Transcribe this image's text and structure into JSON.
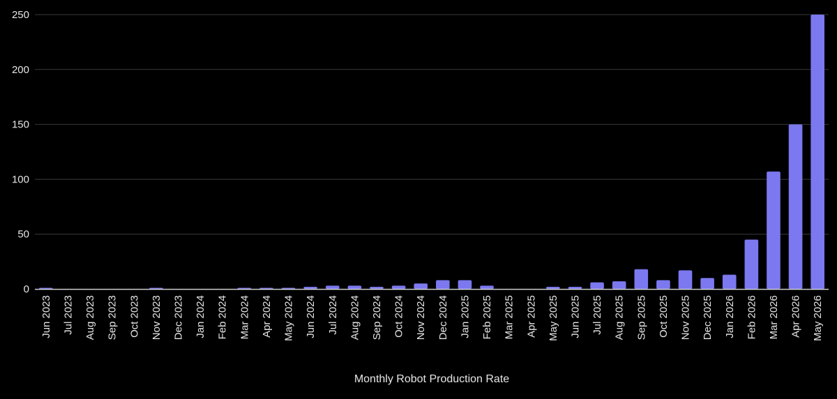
{
  "chart_data": {
    "type": "bar",
    "title": "",
    "xlabel": "Monthly Robot Production Rate",
    "ylabel": "",
    "ylim": [
      0,
      250
    ],
    "yticks": [
      "0",
      "50",
      "100",
      "150",
      "200",
      "250"
    ],
    "grid": true,
    "legend": "none",
    "bar_color": "#7b78f0",
    "categories": [
      "Jun 2023",
      "Jul 2023",
      "Aug 2023",
      "Sep 2023",
      "Oct 2023",
      "Nov 2023",
      "Dec 2023",
      "Jan 2024",
      "Feb 2024",
      "Mar 2024",
      "Apr 2024",
      "May 2024",
      "Jun 2024",
      "Jul 2024",
      "Aug 2024",
      "Sep 2024",
      "Oct 2024",
      "Nov 2024",
      "Dec 2024",
      "Jan 2025",
      "Feb 2025",
      "Mar 2025",
      "Apr 2025",
      "May 2025",
      "Jun 2025",
      "Jul 2025",
      "Aug 2025",
      "Sep 2025",
      "Oct 2025",
      "Nov 2025",
      "Dec 2025",
      "Jan 2026",
      "Feb 2026",
      "Mar 2026",
      "Apr 2026",
      "May 2026"
    ],
    "values": [
      1,
      0,
      0,
      0,
      0,
      1,
      0,
      0,
      0,
      1,
      1,
      1,
      2,
      3,
      3,
      2,
      3,
      5,
      8,
      8,
      3,
      0,
      0,
      2,
      2,
      6,
      7,
      18,
      8,
      17,
      10,
      13,
      45,
      107,
      150,
      250
    ]
  }
}
